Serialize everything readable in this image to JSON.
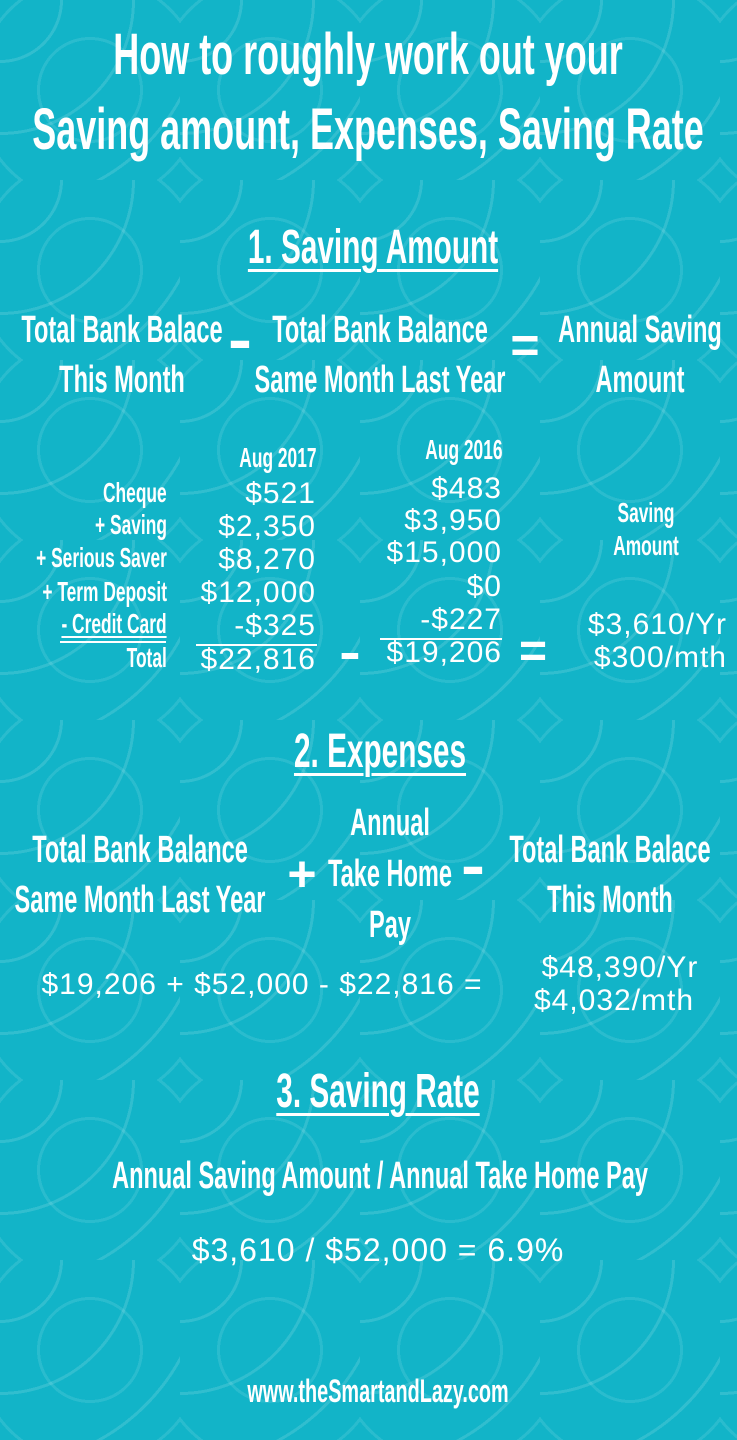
{
  "title": {
    "line1": "How to roughly work out your",
    "line2": "Saving amount, Expenses, Saving Rate"
  },
  "section1": {
    "heading": "1. Saving Amount",
    "formula": {
      "left1": "Total Bank Balace",
      "left2": "This Month",
      "op1": "-",
      "mid1": "Total Bank Balance",
      "mid2": "Same Month Last Year",
      "op2": "=",
      "right1": "Annual Saving",
      "right2": "Amount"
    },
    "table": {
      "col1_header": "Aug 2017",
      "col2_header": "Aug 2016",
      "rows": [
        {
          "label": "Cheque",
          "aug2017": "$521",
          "aug2016": "$483"
        },
        {
          "label": "+ Saving",
          "aug2017": "$2,350",
          "aug2016": "$3,950"
        },
        {
          "label": "+ Serious Saver",
          "aug2017": "$8,270",
          "aug2016": "$15,000"
        },
        {
          "label": "+ Term Deposit",
          "aug2017": "$12,000",
          "aug2016": "$0"
        },
        {
          "label": "- Credit Card",
          "aug2017": "-$325",
          "aug2016": "-$227"
        }
      ],
      "total": {
        "label": "Total",
        "aug2017": "$22,816",
        "aug2016": "$19,206"
      },
      "op1": "-",
      "op2": "=",
      "result_label1": "Saving",
      "result_label2": "Amount",
      "result_year": "$3,610/Yr",
      "result_month": "$300/mth"
    }
  },
  "section2": {
    "heading": "2. Expenses",
    "formula": {
      "left1": "Total Bank Balance",
      "left2": "Same Month Last Year",
      "op1": "+",
      "mid1": "Annual",
      "mid2": "Take Home",
      "mid3": "Pay",
      "op2": "-",
      "right1": "Total Bank Balace",
      "right2": "This Month"
    },
    "equation": "$19,206 + $52,000 - $22,816 =",
    "result_year": "$48,390/Yr",
    "result_month": "$4,032/mth"
  },
  "section3": {
    "heading": "3. Saving Rate",
    "formula": "Annual Saving Amount / Annual Take Home Pay",
    "equation": "$3,610 / $52,000 = 6.9%"
  },
  "footer": {
    "url": "www.theSmartandLazy.com"
  },
  "colors": {
    "background": "#12b4c8",
    "text": "#ffffff"
  }
}
